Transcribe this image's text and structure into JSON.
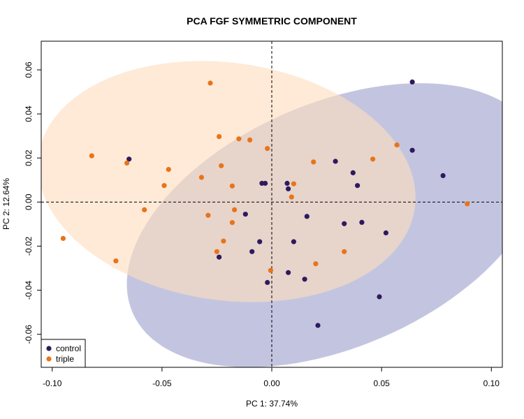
{
  "chart_data": {
    "type": "scatter",
    "title": "PCA FGF SYMMETRIC COMPONENT",
    "xlabel": "PC 1: 37.74%",
    "ylabel": "PC 2: 12.64%",
    "xlim": [
      -0.105,
      0.105
    ],
    "ylim": [
      -0.075,
      0.073
    ],
    "x_ticks": [
      "-0.10",
      "-0.05",
      "0.00",
      "0.05",
      "0.10"
    ],
    "y_ticks": [
      "-0.06",
      "-0.04",
      "-0.02",
      "0.00",
      "0.02",
      "0.04",
      "0.06"
    ],
    "grid": false,
    "legend_position": "bottom-left",
    "reference_lines": {
      "x": 0,
      "y": 0,
      "style": "dashed"
    },
    "series": [
      {
        "name": "control",
        "color": "#2E1A5E",
        "ellipse": {
          "cx": 0.0285,
          "cy": -0.0105,
          "rx": 0.1001,
          "ry": 0.0554,
          "angle_deg": 23.3,
          "fill": "#B9BBDA"
        },
        "points": [
          [
            0.064,
            0.0545
          ],
          [
            -0.065,
            0.0195
          ],
          [
            0.064,
            0.0235
          ],
          [
            0.078,
            0.012
          ],
          [
            0.029,
            0.0185
          ],
          [
            0.037,
            0.0133
          ],
          [
            0.039,
            0.0075
          ],
          [
            0.007,
            0.0085
          ],
          [
            -0.0045,
            0.0085
          ],
          [
            -0.003,
            0.0085
          ],
          [
            0.0075,
            0.006
          ],
          [
            -0.012,
            -0.0055
          ],
          [
            0.016,
            -0.0065
          ],
          [
            0.033,
            -0.0098
          ],
          [
            0.041,
            -0.0092
          ],
          [
            0.052,
            -0.014
          ],
          [
            -0.0055,
            -0.018
          ],
          [
            0.01,
            -0.018
          ],
          [
            -0.009,
            -0.0225
          ],
          [
            -0.024,
            -0.025
          ],
          [
            0.0075,
            -0.032
          ],
          [
            0.015,
            -0.035
          ],
          [
            -0.002,
            -0.0365
          ],
          [
            0.049,
            -0.043
          ],
          [
            0.021,
            -0.056
          ]
        ]
      },
      {
        "name": "triple",
        "color": "#E8741A",
        "ellipse": {
          "cx": -0.0205,
          "cy": 0.0093,
          "rx": 0.0865,
          "ry": 0.0539,
          "angle_deg": -8.0,
          "fill": "#FDDDBE"
        },
        "points": [
          [
            -0.028,
            0.054
          ],
          [
            -0.024,
            0.0297
          ],
          [
            -0.015,
            0.0287
          ],
          [
            -0.01,
            0.0282
          ],
          [
            -0.002,
            0.0243
          ],
          [
            0.057,
            0.0259
          ],
          [
            -0.082,
            0.021
          ],
          [
            -0.066,
            0.0177
          ],
          [
            0.019,
            0.0182
          ],
          [
            0.046,
            0.0195
          ],
          [
            -0.023,
            0.0165
          ],
          [
            -0.047,
            0.0148
          ],
          [
            -0.032,
            0.0112
          ],
          [
            -0.049,
            0.0075
          ],
          [
            -0.018,
            0.0073
          ],
          [
            0.01,
            0.0083
          ],
          [
            0.009,
            0.0023
          ],
          [
            -0.058,
            -0.0035
          ],
          [
            -0.017,
            -0.0035
          ],
          [
            -0.029,
            -0.006
          ],
          [
            -0.018,
            -0.0093
          ],
          [
            0.089,
            -0.0008
          ],
          [
            -0.095,
            -0.0165
          ],
          [
            -0.022,
            -0.0177
          ],
          [
            -0.025,
            -0.0225
          ],
          [
            0.033,
            -0.0225
          ],
          [
            -0.071,
            -0.0267
          ],
          [
            0.02,
            -0.028
          ],
          [
            -0.0005,
            -0.031
          ]
        ]
      }
    ]
  }
}
